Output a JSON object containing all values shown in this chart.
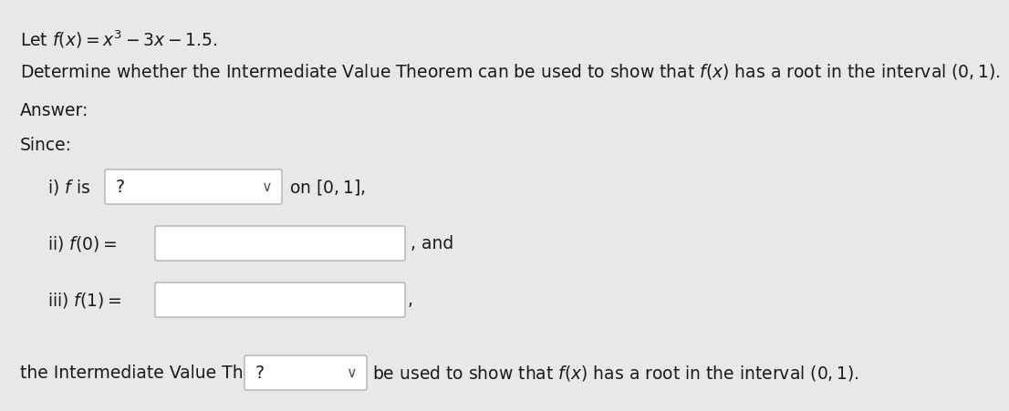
{
  "bg_color": "#e8e8e8",
  "title_line": "Let $f(x) = x^3 - 3x - 1.5$.",
  "line2": "Determine whether the Intermediate Value Theorem can be used to show that $f(x)$ has a root in the interval $(0, 1)$.",
  "answer_label": "Answer:",
  "since_label": "Since:",
  "row1_prefix": "i) $f$ is",
  "row1_suffix": "on $[0, 1]$,",
  "row2_prefix": "ii) $f(0) =$",
  "row2_suffix": ", and",
  "row3_prefix": "iii) $f(1) =$",
  "row3_suffix": ",",
  "bottom_prefix": "the Intermediate Value Theorem",
  "bottom_suffix": "be used to show that $f(x)$ has a root in the interval $(0, 1)$.",
  "text_color": "#1a1a1a",
  "box_color": "#ffffff",
  "box_edge_color": "#b0b0b0",
  "arrow_color": "#555555",
  "font_size": 13.5
}
